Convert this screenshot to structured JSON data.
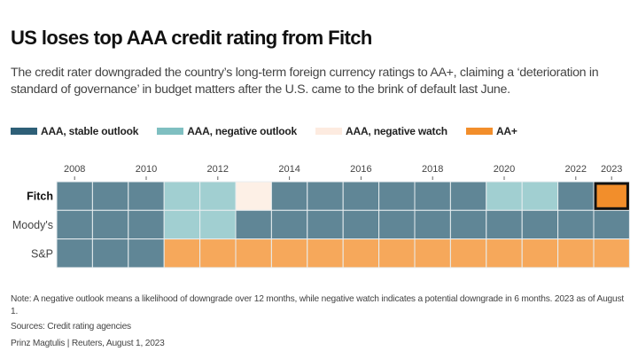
{
  "header": {
    "title": "US loses top AAA credit rating from Fitch",
    "subtitle": "The credit rater downgraded the country’s long-term foreign currency ratings to AA+, claiming a ‘deterioration in standard of governance’ in budget matters after the U.S. came to the brink of default last June."
  },
  "legend": [
    {
      "key": "S",
      "label": "AAA, stable outlook",
      "color": "#2e5f77"
    },
    {
      "key": "N",
      "label": "AAA, negative outlook",
      "color": "#7fbfc1"
    },
    {
      "key": "W",
      "label": "AAA, negative watch",
      "color": "#fdebe0"
    },
    {
      "key": "A",
      "label": "AA+",
      "color": "#f28e2b"
    }
  ],
  "cell_colors": {
    "S": "#608696",
    "N": "#a1cfd1",
    "W": "#fdf0e6",
    "A": "#f6a85b",
    "A_highlight": "#f28e2b"
  },
  "chart_data": {
    "type": "heatmap",
    "title": "US loses top AAA credit rating from Fitch",
    "x": [
      2008,
      2009,
      2010,
      2011,
      2012,
      2013,
      2014,
      2015,
      2016,
      2017,
      2018,
      2019,
      2020,
      2021,
      2022,
      2023
    ],
    "x_tick_labels": [
      "2008",
      "2010",
      "2012",
      "2014",
      "2016",
      "2018",
      "2020",
      "2022",
      "2023"
    ],
    "y": [
      "Fitch",
      "Moody's",
      "S&P"
    ],
    "values": [
      [
        "AAA, stable outlook",
        "AAA, stable outlook",
        "AAA, stable outlook",
        "AAA, negative outlook",
        "AAA, negative outlook",
        "AAA, negative watch",
        "AAA, stable outlook",
        "AAA, stable outlook",
        "AAA, stable outlook",
        "AAA, stable outlook",
        "AAA, stable outlook",
        "AAA, stable outlook",
        "AAA, negative outlook",
        "AAA, negative outlook",
        "AAA, stable outlook",
        "AA+"
      ],
      [
        "AAA, stable outlook",
        "AAA, stable outlook",
        "AAA, stable outlook",
        "AAA, negative outlook",
        "AAA, negative outlook",
        "AAA, stable outlook",
        "AAA, stable outlook",
        "AAA, stable outlook",
        "AAA, stable outlook",
        "AAA, stable outlook",
        "AAA, stable outlook",
        "AAA, stable outlook",
        "AAA, stable outlook",
        "AAA, stable outlook",
        "AAA, stable outlook",
        "AAA, stable outlook"
      ],
      [
        "AAA, stable outlook",
        "AAA, stable outlook",
        "AAA, stable outlook",
        "AA+",
        "AA+",
        "AA+",
        "AA+",
        "AA+",
        "AA+",
        "AA+",
        "AA+",
        "AA+",
        "AA+",
        "AA+",
        "AA+",
        "AA+"
      ]
    ],
    "codes": [
      [
        "S",
        "S",
        "S",
        "N",
        "N",
        "W",
        "S",
        "S",
        "S",
        "S",
        "S",
        "S",
        "N",
        "N",
        "S",
        "A"
      ],
      [
        "S",
        "S",
        "S",
        "N",
        "N",
        "S",
        "S",
        "S",
        "S",
        "S",
        "S",
        "S",
        "S",
        "S",
        "S",
        "S"
      ],
      [
        "S",
        "S",
        "S",
        "A",
        "A",
        "A",
        "A",
        "A",
        "A",
        "A",
        "A",
        "A",
        "A",
        "A",
        "A",
        "A"
      ]
    ],
    "highlight": {
      "row": "Fitch",
      "year": 2023
    },
    "bold_row": "Fitch",
    "legend_position": "top"
  },
  "footer": {
    "note": "Note: A negative outlook means a likelihood of downgrade over 12 months, while negative watch indicates a potential downgrade in 6 months. 2023 as of August 1.",
    "sources": "Sources: Credit rating agencies",
    "credit": "Prinz Magtulis | Reuters, August 1, 2023"
  }
}
